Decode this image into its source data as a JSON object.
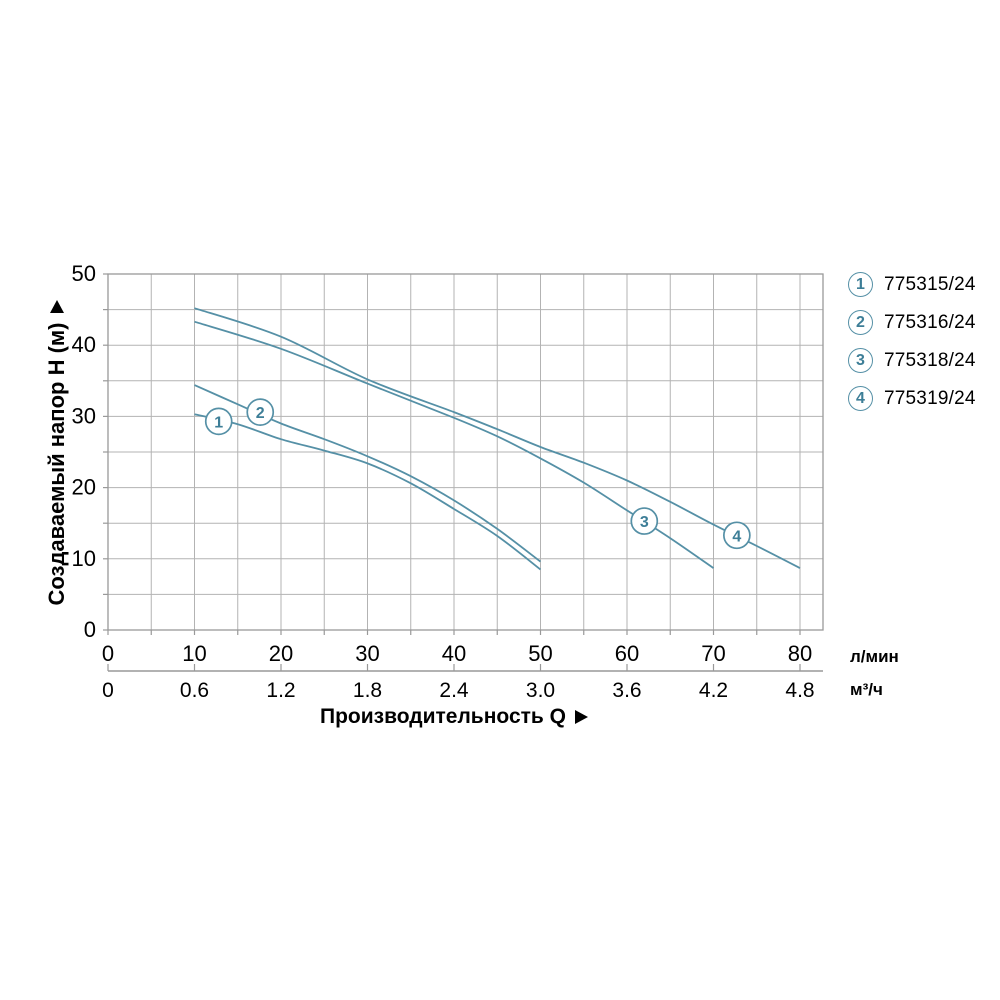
{
  "chart_data": {
    "type": "line",
    "title": "",
    "ylabel": "Создаваемый напор H (м)",
    "xlabel": "Производительность Q",
    "y_axis": {
      "min": 0,
      "max": 50,
      "major_ticks": [
        0,
        10,
        20,
        30,
        40,
        50
      ],
      "minor_step": 5,
      "grid": true
    },
    "x_axis": {
      "min": 0,
      "max": 80,
      "minor_step": 5,
      "grid": true,
      "primary": {
        "unit": "л/мин",
        "ticks": [
          "0",
          "10",
          "20",
          "30",
          "40",
          "50",
          "60",
          "70",
          "80"
        ]
      },
      "secondary": {
        "unit": "м³/ч",
        "ticks": [
          "0",
          "0.6",
          "1.2",
          "1.8",
          "2.4",
          "3.0",
          "3.6",
          "4.2",
          "4.8"
        ]
      }
    },
    "series": [
      {
        "num": "1",
        "name": "775315/24",
        "points": [
          [
            10,
            30.3
          ],
          [
            15,
            28.9
          ],
          [
            20,
            26.8
          ],
          [
            25,
            25.2
          ],
          [
            30,
            23.4
          ],
          [
            35,
            20.6
          ],
          [
            40,
            17.0
          ],
          [
            45,
            13.2
          ],
          [
            50,
            8.5
          ]
        ],
        "marker_at": {
          "q": 12.8,
          "h": 29.3
        }
      },
      {
        "num": "2",
        "name": "775316/24",
        "points": [
          [
            10,
            34.4
          ],
          [
            15,
            31.7
          ],
          [
            20,
            29.0
          ],
          [
            25,
            26.8
          ],
          [
            30,
            24.4
          ],
          [
            35,
            21.6
          ],
          [
            40,
            18.2
          ],
          [
            45,
            14.2
          ],
          [
            50,
            9.6
          ]
        ],
        "marker_at": {
          "q": 17.6,
          "h": 30.6
        }
      },
      {
        "num": "3",
        "name": "775318/24",
        "points": [
          [
            10,
            43.3
          ],
          [
            20,
            39.5
          ],
          [
            30,
            34.6
          ],
          [
            40,
            29.8
          ],
          [
            45,
            27.2
          ],
          [
            50,
            24.1
          ],
          [
            55,
            20.7
          ],
          [
            60,
            16.8
          ],
          [
            65,
            12.9
          ],
          [
            70,
            8.7
          ]
        ],
        "marker_at": {
          "q": 62,
          "h": 15.3
        }
      },
      {
        "num": "4",
        "name": "775319/24",
        "points": [
          [
            10,
            45.2
          ],
          [
            20,
            41.2
          ],
          [
            30,
            35.2
          ],
          [
            40,
            30.6
          ],
          [
            45,
            28.2
          ],
          [
            50,
            25.7
          ],
          [
            55,
            23.5
          ],
          [
            60,
            21.0
          ],
          [
            65,
            18.0
          ],
          [
            70,
            14.8
          ],
          [
            75,
            11.8
          ],
          [
            80,
            8.7
          ]
        ],
        "marker_at": {
          "q": 72.7,
          "h": 13.3
        }
      }
    ],
    "colors": {
      "curve": "#5590a6",
      "marker_text": "#3d7e97",
      "grid": "#b3b3b3",
      "axis": "#999999",
      "text": "#000000"
    },
    "legend_position": "right"
  },
  "legend": {
    "items": [
      {
        "num": "1",
        "label": "775315/24"
      },
      {
        "num": "2",
        "label": "775316/24"
      },
      {
        "num": "3",
        "label": "775318/24"
      },
      {
        "num": "4",
        "label": "775319/24"
      }
    ]
  }
}
